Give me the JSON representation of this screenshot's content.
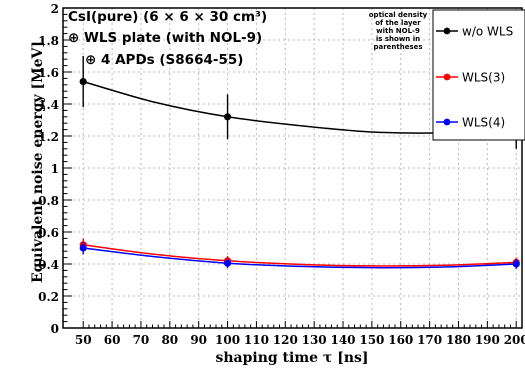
{
  "chart_data": {
    "type": "line",
    "xlabel": "shaping time τ [ns]",
    "ylabel": "Equivalent noise energy [MeV]",
    "xlim": [
      43,
      202
    ],
    "ylim": [
      0,
      2
    ],
    "x_ticks": [
      50,
      60,
      70,
      80,
      90,
      100,
      110,
      120,
      130,
      140,
      150,
      160,
      170,
      180,
      190,
      200
    ],
    "y_ticks": [
      0,
      0.2,
      0.4,
      0.6,
      0.8,
      1,
      1.2,
      1.4,
      1.6,
      1.8,
      2
    ],
    "grid": true,
    "annotation": {
      "line1": "CsI(pure) (6 × 6 × 30 cm³)",
      "line2": "⊕ WLS plate (with NOL-9)",
      "line3": "⊕ 4 APDs (S8664-55)",
      "note": [
        "optical density",
        "of the layer",
        "with NOL-9",
        "is shown in",
        "parentheses"
      ]
    },
    "legend_position": "top-right",
    "series": [
      {
        "name": "w/o WLS",
        "color": "#000000",
        "points": [
          {
            "x": 50,
            "y": 1.54,
            "err": 0.16
          },
          {
            "x": 100,
            "y": 1.32,
            "err": 0.14
          },
          {
            "x": 200,
            "y": 1.25,
            "err": 0.13
          }
        ],
        "fit": [
          [
            50,
            1.54
          ],
          [
            75,
            1.41
          ],
          [
            100,
            1.32
          ],
          [
            125,
            1.265
          ],
          [
            150,
            1.225
          ],
          [
            175,
            1.22
          ],
          [
            200,
            1.25
          ]
        ]
      },
      {
        "name": "WLS(3)",
        "color": "#ff0000",
        "points": [
          {
            "x": 50,
            "y": 0.52,
            "err": 0.04
          },
          {
            "x": 100,
            "y": 0.42,
            "err": 0.03
          },
          {
            "x": 200,
            "y": 0.41,
            "err": 0.03
          }
        ],
        "fit": [
          [
            50,
            0.52
          ],
          [
            75,
            0.46
          ],
          [
            100,
            0.42
          ],
          [
            125,
            0.398
          ],
          [
            150,
            0.388
          ],
          [
            175,
            0.392
          ],
          [
            200,
            0.41
          ]
        ]
      },
      {
        "name": "WLS(4)",
        "color": "#0000ff",
        "points": [
          {
            "x": 50,
            "y": 0.5,
            "err": 0.04
          },
          {
            "x": 100,
            "y": 0.405,
            "err": 0.03
          },
          {
            "x": 200,
            "y": 0.4,
            "err": 0.03
          }
        ],
        "fit": [
          [
            50,
            0.5
          ],
          [
            75,
            0.445
          ],
          [
            100,
            0.405
          ],
          [
            125,
            0.385
          ],
          [
            150,
            0.377
          ],
          [
            175,
            0.381
          ],
          [
            200,
            0.4
          ]
        ]
      }
    ]
  }
}
